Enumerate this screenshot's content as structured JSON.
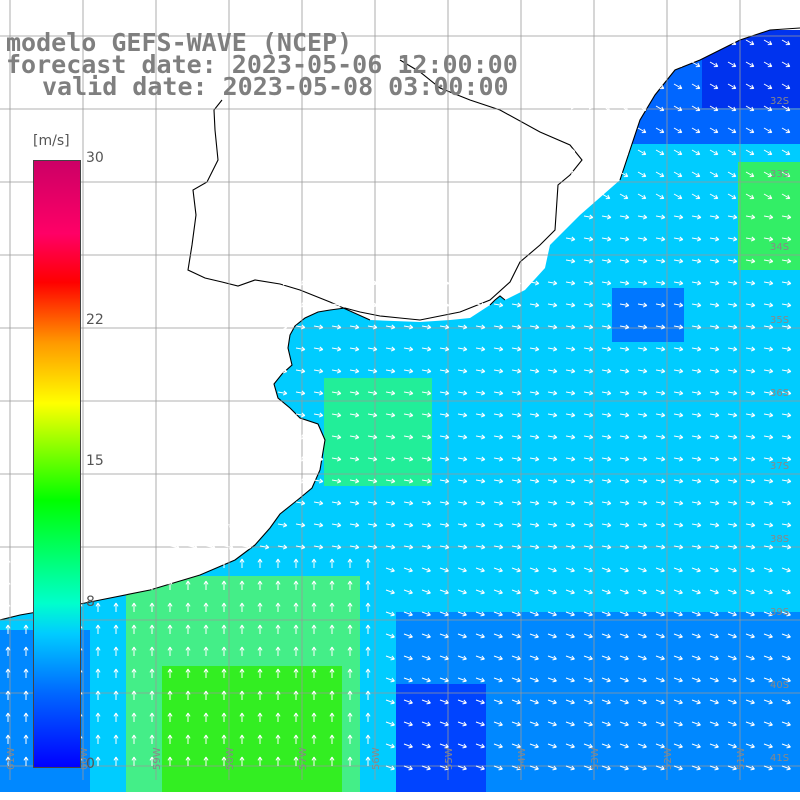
{
  "title": {
    "line1": "modelo GEFS-WAVE (NCEP)",
    "line2": "forecast date: 2023-05-06 12:00:00",
    "line3": "valid date: 2023-05-08 03:00:00"
  },
  "colorbar": {
    "unit": "[m/s]",
    "ticks": [
      "30",
      "22",
      "15",
      "8",
      "0"
    ],
    "tick_values": [
      30,
      22,
      15,
      8,
      0
    ],
    "colors": [
      "#0000ff",
      "#0066ff",
      "#00ccff",
      "#00ffcc",
      "#00ff00",
      "#7fff00",
      "#ffff00",
      "#ff9900",
      "#ff0000",
      "#ff0066",
      "#cc0066"
    ]
  },
  "grid": {
    "lat_labels": [
      "32S",
      "33S",
      "34S",
      "35S",
      "36S",
      "37S",
      "38S",
      "39S",
      "40S",
      "41S"
    ],
    "lon_labels": [
      "61W",
      "60W",
      "59W",
      "58W",
      "57W",
      "56W",
      "55W",
      "54W",
      "53W",
      "52W",
      "51W"
    ]
  },
  "colors": {
    "ocean_base": "#00ccff",
    "land": "#ffffff",
    "coastline": "#000000",
    "arrows": "#ffffff",
    "gridlines": "#999999",
    "title_text": "#7f7f7f"
  }
}
